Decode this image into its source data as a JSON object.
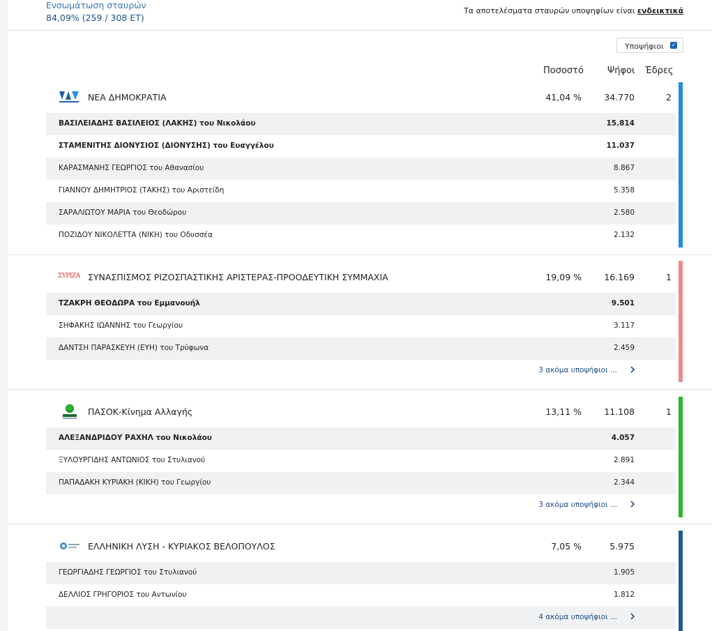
{
  "header": {
    "integration_label": "Ενσωμάτωση σταυρών",
    "integration_value": "84,09% (259 / 308 ΕΤ)",
    "notice_text": "Τα αποτελέσματα σταυρών υποψηφίων είναι",
    "notice_link": "ενδεικτικά"
  },
  "toggle": {
    "label": "Υποψήφιοι",
    "checked": true
  },
  "columns": {
    "percent": "Ποσοστό",
    "votes": "Ψήφοι",
    "seats": "Έδρες"
  },
  "parties": [
    {
      "name": "ΝΕΑ ΔΗΜΟΚΡΑΤΙΑ",
      "percent": "41,04 %",
      "votes": "34.770",
      "seats": "2",
      "color": "#1c8ee0",
      "logo_icon": "nd-logo-icon",
      "candidates": [
        {
          "name": "ΒΑΣΙΛΕΙΑΔΗΣ ΒΑΣΙΛΕΙΟΣ (ΛΑΚΗΣ) του Νικολάου",
          "votes": "15.814",
          "bold": true
        },
        {
          "name": "ΣΤΑΜΕΝΙΤΗΣ ΔΙΟΝΥΣΙΟΣ (ΔΙΟΝΥΣΗΣ) του Ευαγγέλου",
          "votes": "11.037",
          "bold": true
        },
        {
          "name": "ΚΑΡΑΣΜΑΝΗΣ ΓΕΩΡΓΙΟΣ του Αθανασίου",
          "votes": "8.867",
          "bold": false
        },
        {
          "name": "ΓΙΑΝΝΟΥ ΔΗΜΗΤΡΙΟΣ (ΤΑΚΗΣ) του Αριστείδη",
          "votes": "5.358",
          "bold": false
        },
        {
          "name": "ΣΑΡΑΛΙΩΤΟΥ ΜΑΡΙΑ του Θεοδώρου",
          "votes": "2.580",
          "bold": false
        },
        {
          "name": "ΠΟΖΙΔΟΥ ΝΙΚΟΛΕΤΤΑ (ΝΙΚΗ) του Οδυσσέα",
          "votes": "2.132",
          "bold": false
        }
      ],
      "more": ""
    },
    {
      "name": "ΣΥΝΑΣΠΙΣΜΟΣ ΡΙΖΟΣΠΑΣΤΙΚΗΣ ΑΡΙΣΤΕΡΑΣ-ΠΡΟΟΔΕΥΤΙΚΗ ΣΥΜΜΑΧΙΑ",
      "percent": "19,09 %",
      "votes": "16.169",
      "seats": "1",
      "color": "#f08a8a",
      "logo_icon": "syriza-logo-icon",
      "logo_text": "ΣΥΡΙΖΑ",
      "candidates": [
        {
          "name": "ΤΖΑΚΡΗ ΘΕΟΔΩΡΑ του Εμμανουήλ",
          "votes": "9.501",
          "bold": true
        },
        {
          "name": "ΣΗΦΑΚΗΣ ΙΩΑΝΝΗΣ του Γεωργίου",
          "votes": "3.117",
          "bold": false
        },
        {
          "name": "ΔΑΝΤΣΗ ΠΑΡΑΣΚΕΥΗ (ΕΥΗ) του Τρύφωνα",
          "votes": "2.459",
          "bold": false
        }
      ],
      "more": "3 ακόμα υποψήφιοι ..."
    },
    {
      "name": "ΠΑΣΟΚ-Κίνημα Αλλαγής",
      "percent": "13,11 %",
      "votes": "11.108",
      "seats": "1",
      "color": "#2ab82a",
      "logo_icon": "pasok-logo-icon",
      "candidates": [
        {
          "name": "ΑΛΕΞΑΝΔΡΙΔΟΥ ΡΑΧΗΛ του Νικολάου",
          "votes": "4.057",
          "bold": true
        },
        {
          "name": "ΞΥΛΟΥΡΓΙΔΗΣ ΑΝΤΩΝΙΟΣ του Στυλιανού",
          "votes": "2.891",
          "bold": false
        },
        {
          "name": "ΠΑΠΑΔΑΚΗ ΚΥΡΙΑΚΗ (ΚΙΚΗ) του Γεωργίου",
          "votes": "2.344",
          "bold": false
        }
      ],
      "more": "3 ακόμα υποψήφιοι ..."
    },
    {
      "name": "ΕΛΛΗΝΙΚΗ ΛΥΣΗ - ΚΥΡΙΑΚΟΣ ΒΕΛΟΠΟΥΛΟΣ",
      "percent": "7,05 %",
      "votes": "5.975",
      "seats": "",
      "color": "#1d5b96",
      "logo_icon": "elliniki-lysi-logo-icon",
      "candidates": [
        {
          "name": "ΓΕΩΡΓΙΑΔΗΣ ΓΕΩΡΓΙΟΣ του Στυλιανού",
          "votes": "1.905",
          "bold": false
        },
        {
          "name": "ΔΕΛΛΙΟΣ ΓΡΗΓΟΡΙΟΣ του Αντωνίου",
          "votes": "1.812",
          "bold": false
        }
      ],
      "more": "4 ακόμα υποψήφιοι ..."
    }
  ]
}
